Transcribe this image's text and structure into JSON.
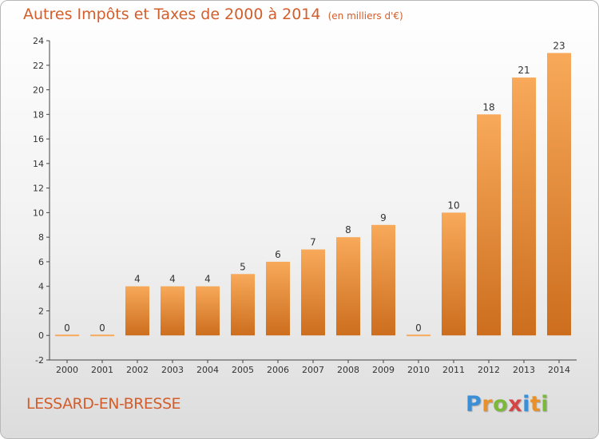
{
  "header": {
    "title": "Autres Impôts et Taxes de 2000 à 2014",
    "subtitle": "(en milliers d'€)"
  },
  "footer": {
    "place": "LESSARD-EN-BRESSE",
    "logo_letters": [
      "P",
      "r",
      "o",
      "x",
      "i",
      "t",
      "i"
    ]
  },
  "colors": {
    "bar_top": "#f8a95a",
    "bar_bottom": "#cc6e1e",
    "title": "#d35e2c",
    "logo": [
      "#3a8fd6",
      "#e8902a",
      "#7cb83a",
      "#d64545",
      "#3a8fd6",
      "#e8902a",
      "#7cb83a"
    ]
  },
  "chart_data": {
    "type": "bar",
    "title": "Autres Impôts et Taxes de 2000 à 2014",
    "subtitle": "(en milliers d'€)",
    "categories": [
      "2000",
      "2001",
      "2002",
      "2003",
      "2004",
      "2005",
      "2006",
      "2007",
      "2008",
      "2009",
      "2010",
      "2011",
      "2012",
      "2013",
      "2014"
    ],
    "values": [
      0,
      0,
      4,
      4,
      4,
      5,
      6,
      7,
      8,
      9,
      0,
      10,
      18,
      21,
      23
    ],
    "value_labels": [
      "0",
      "0",
      "4",
      "4",
      "4",
      "5",
      "6",
      "7",
      "8",
      "9",
      "0",
      "10",
      "18",
      "21",
      "23"
    ],
    "ylim": [
      -2,
      24
    ],
    "yticks": [
      -2,
      0,
      2,
      4,
      6,
      8,
      10,
      12,
      14,
      16,
      18,
      20,
      22,
      24
    ],
    "grid": false,
    "legend": "none"
  }
}
